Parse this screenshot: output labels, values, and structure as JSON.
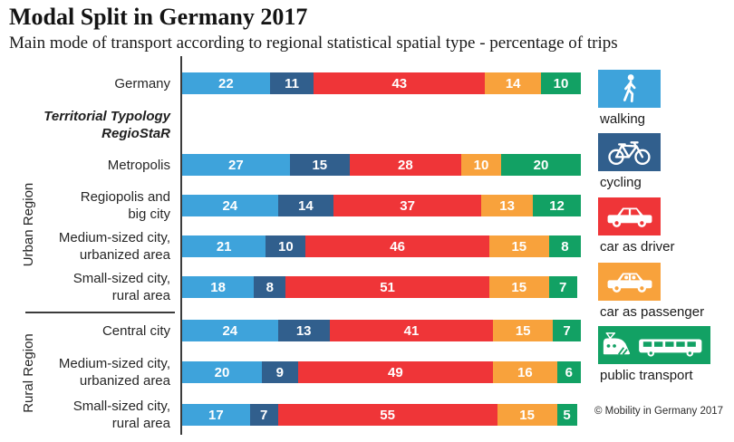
{
  "header": {
    "title": "Modal Split in Germany 2017",
    "subtitle": "Main mode of transport according to regional statistical spatial type - percentage of trips"
  },
  "typology_note": {
    "line1": "Territorial  Typology",
    "line2": "RegioStaR"
  },
  "groups": {
    "urban": "Urban Region",
    "rural": "Rural Region"
  },
  "legend": {
    "items": [
      {
        "label": "walking",
        "color": "#3EA3DB",
        "icon": "pedestrian-icon"
      },
      {
        "label": "cycling",
        "color": "#315F8D",
        "icon": "bicycle-icon"
      },
      {
        "label": "car as driver",
        "color": "#EF3538",
        "icon": "car-driver-icon"
      },
      {
        "label": "car as passenger",
        "color": "#F8A23C",
        "icon": "car-passenger-icon"
      },
      {
        "label": "public transport",
        "color": "#12A164",
        "icon": "train-bus-icon"
      }
    ]
  },
  "footer": {
    "credit": "© Mobility in Germany 2017"
  },
  "chart_data": {
    "type": "bar",
    "orientation": "horizontal",
    "stacked": true,
    "title": "Modal Split in Germany 2017",
    "subtitle": "Main mode of transport according to regional statistical spatial type - percentage of trips",
    "unit": "percentage of trips",
    "x_range": [
      0,
      100
    ],
    "grid": false,
    "legend_position": "right",
    "series_names": [
      "walking",
      "cycling",
      "car as driver",
      "car as passenger",
      "public transport"
    ],
    "series_colors": [
      "#3EA3DB",
      "#315F8D",
      "#EF3538",
      "#F8A23C",
      "#12A164"
    ],
    "rows": [
      {
        "label": [
          "Germany"
        ],
        "group": null,
        "values": [
          22,
          11,
          43,
          14,
          10
        ]
      },
      {
        "label": [
          "Metropolis"
        ],
        "group": "Urban Region",
        "values": [
          27,
          15,
          28,
          10,
          20
        ]
      },
      {
        "label": [
          "Regiopolis and",
          "big city"
        ],
        "group": "Urban Region",
        "values": [
          24,
          14,
          37,
          13,
          12
        ]
      },
      {
        "label": [
          "Medium-sized city,",
          "urbanized area"
        ],
        "group": "Urban Region",
        "values": [
          21,
          10,
          46,
          15,
          8
        ]
      },
      {
        "label": [
          "Small-sized city,",
          "rural area"
        ],
        "group": "Urban Region",
        "values": [
          18,
          8,
          51,
          15,
          7
        ]
      },
      {
        "label": [
          "Central city"
        ],
        "group": "Rural Region",
        "values": [
          24,
          13,
          41,
          15,
          7
        ]
      },
      {
        "label": [
          "Medium-sized city,",
          "urbanized area"
        ],
        "group": "Rural Region",
        "values": [
          20,
          9,
          49,
          16,
          6
        ]
      },
      {
        "label": [
          "Small-sized city,",
          "rural area"
        ],
        "group": "Rural Region",
        "values": [
          17,
          7,
          55,
          15,
          5
        ]
      }
    ]
  }
}
